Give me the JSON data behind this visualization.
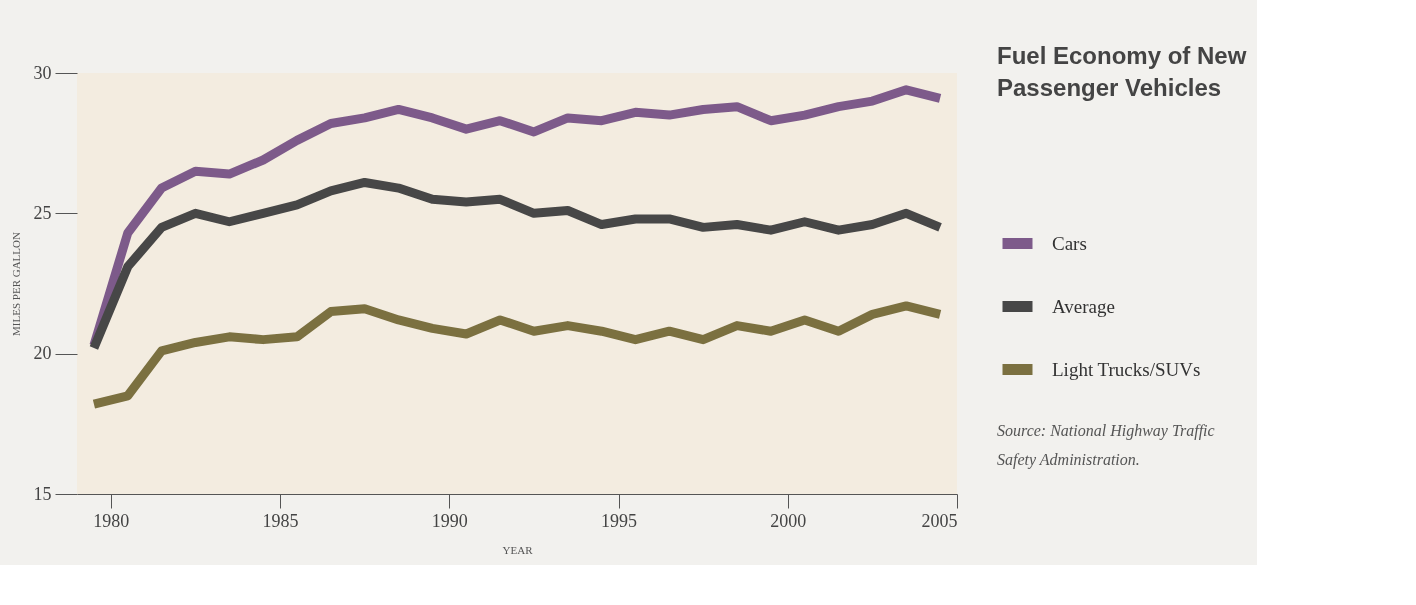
{
  "chart_data": {
    "type": "line",
    "title": "Fuel Economy of New Passenger Vehicles",
    "xlabel": "YEAR",
    "ylabel": "MILES PER GALLON",
    "x": [
      1979.5,
      1980.5,
      1981.5,
      1982.5,
      1983.5,
      1984.5,
      1985.5,
      1986.5,
      1987.5,
      1988.5,
      1989.5,
      1990.5,
      1991.5,
      1992.5,
      1993.5,
      1994.5,
      1995.5,
      1996.5,
      1997.5,
      1998.5,
      1999.5,
      2000.5,
      2001.5,
      2002.5,
      2003.5,
      2004.5
    ],
    "series": [
      {
        "name": "Cars",
        "color": "#7d5a8a",
        "values": [
          20.3,
          24.3,
          25.9,
          26.5,
          26.4,
          26.9,
          27.6,
          28.2,
          28.4,
          28.7,
          28.4,
          28.0,
          28.3,
          27.9,
          28.4,
          28.3,
          28.6,
          28.5,
          28.7,
          28.8,
          28.3,
          28.5,
          28.8,
          29.0,
          29.4,
          29.1
        ]
      },
      {
        "name": "Average",
        "color": "#474747",
        "values": [
          20.2,
          23.1,
          24.5,
          25.0,
          24.7,
          25.0,
          25.3,
          25.8,
          26.1,
          25.9,
          25.5,
          25.4,
          25.5,
          25.0,
          25.1,
          24.6,
          24.8,
          24.8,
          24.5,
          24.6,
          24.4,
          24.7,
          24.4,
          24.6,
          25.0,
          24.5
        ]
      },
      {
        "name": "Light Trucks/SUVs",
        "color": "#7b7040",
        "values": [
          18.2,
          18.5,
          20.1,
          20.4,
          20.6,
          20.5,
          20.6,
          21.5,
          21.6,
          21.2,
          20.9,
          20.7,
          21.2,
          20.8,
          21.0,
          20.8,
          20.5,
          20.8,
          20.5,
          21.0,
          20.8,
          21.2,
          20.8,
          21.4,
          21.7,
          21.4
        ]
      }
    ],
    "xlim": [
      1979,
      2005
    ],
    "xticks": [
      1980,
      1985,
      1990,
      1995,
      2000,
      2005
    ],
    "ylim": [
      15,
      30
    ],
    "yticks": [
      15,
      20,
      25,
      30
    ],
    "grid": false,
    "legend": "right",
    "annotations": [
      "Source: National Highway Traffic Safety Administration."
    ]
  }
}
